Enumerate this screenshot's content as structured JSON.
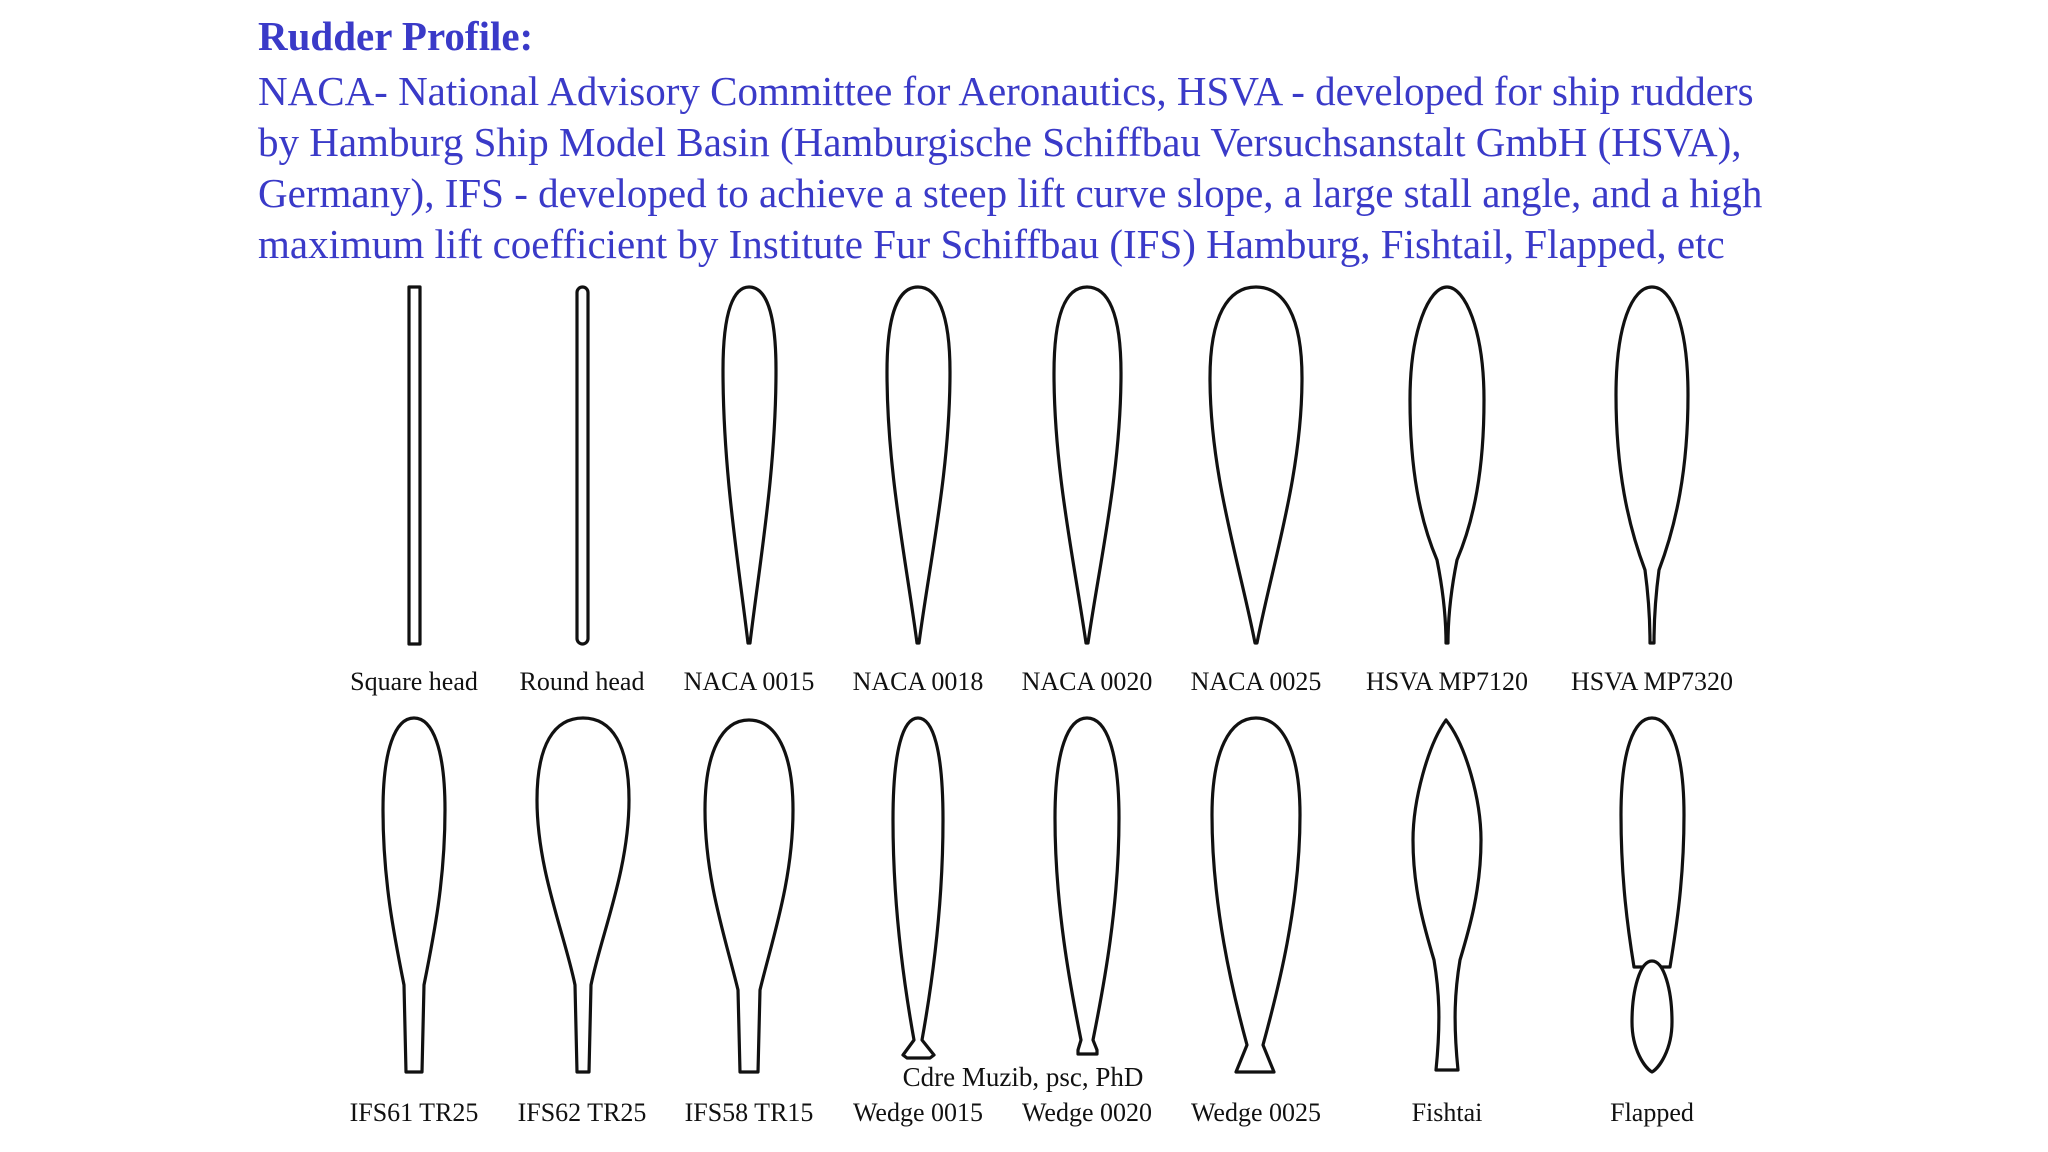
{
  "heading": {
    "title": "Rudder Profile:",
    "lines": [
      "NACA- National Advisory Committee for Aeronautics, HSVA - developed for ship rudders",
      "by Hamburg Ship Model Basin (Hamburgische Schiffbau Versuchsanstalt GmbH (HSVA),",
      "Germany), IFS - developed to achieve a steep lift curve slope, a large stall angle, and a high",
      "maximum lift coefficient by Institute Fur Schiffbau (IFS) Hamburg, Fishtail, Flapped, etc"
    ]
  },
  "profiles": {
    "row1": [
      "Square head",
      "Round head",
      "NACA 0015",
      "NACA 0018",
      "NACA 0020",
      "NACA 0025",
      "HSVA MP7120",
      "HSVA MP7320"
    ],
    "row2": [
      "IFS61 TR25",
      "IFS62 TR25",
      "IFS58 TR15",
      "Wedge 0015",
      "Wedge 0020",
      "Wedge 0025",
      "Fishtai",
      "Flapped"
    ]
  },
  "credit": "Cdre Muzib, psc, PhD",
  "colors": {
    "heading": "#3a3ac8",
    "outline": "#111111"
  }
}
